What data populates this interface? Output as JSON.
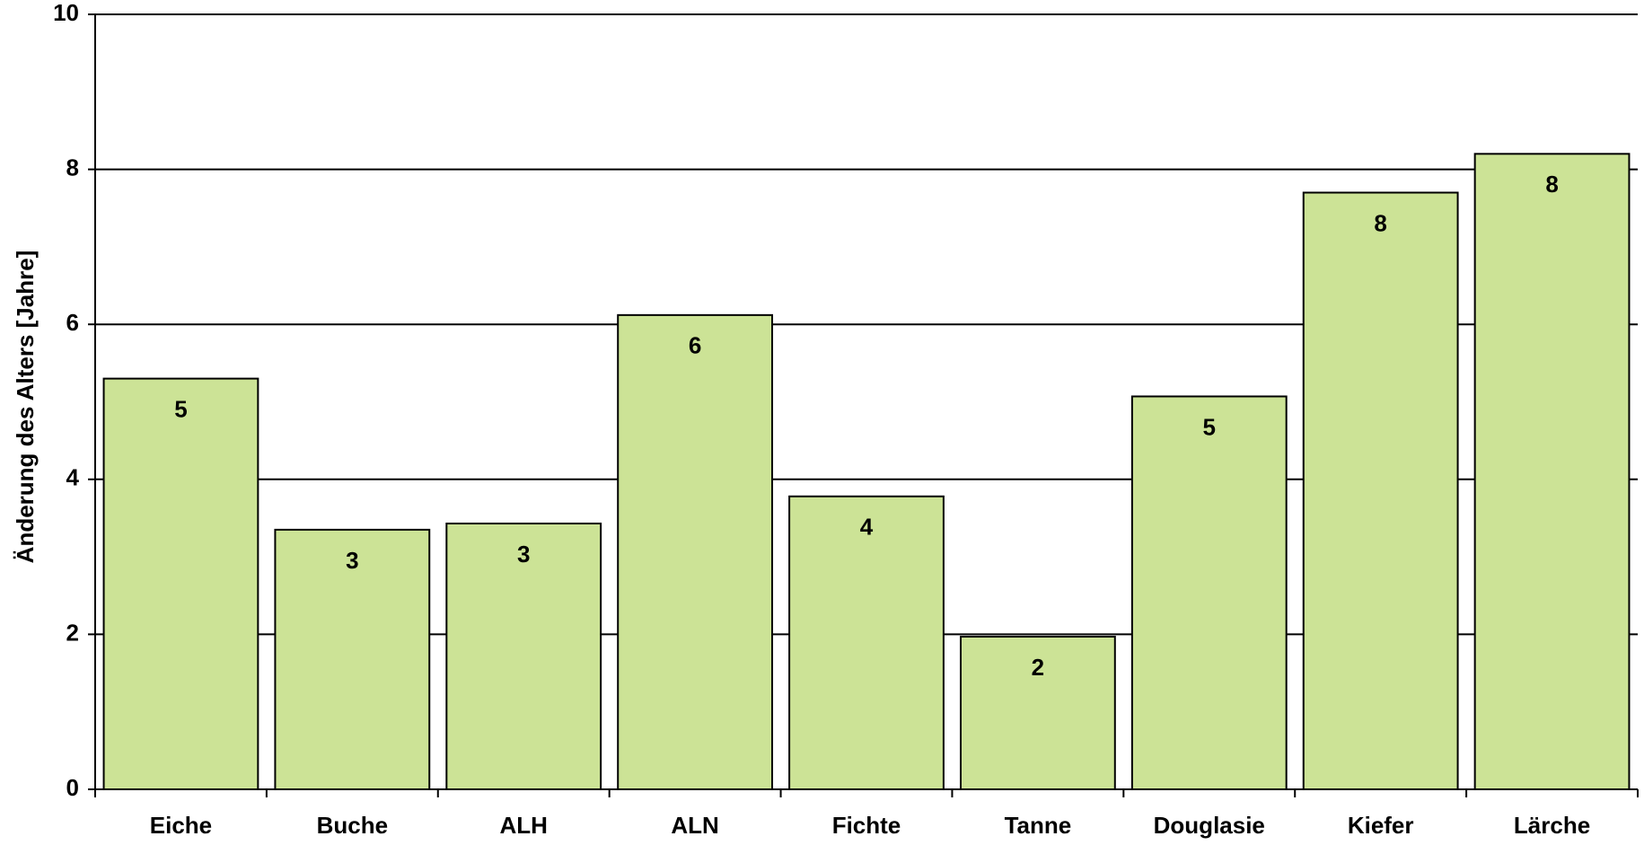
{
  "chart_data": {
    "type": "bar",
    "y_label": "Änderung des Alters [Jahre]",
    "categories": [
      "Eiche",
      "Buche",
      "ALH",
      "ALN",
      "Fichte",
      "Tanne",
      "Douglasie",
      "Kiefer",
      "Lärche"
    ],
    "values": [
      5.3,
      3.35,
      3.43,
      6.12,
      3.78,
      1.97,
      5.07,
      7.7,
      8.2
    ],
    "value_labels": [
      "5",
      "3",
      "3",
      "6",
      "4",
      "2",
      "5",
      "8",
      "8"
    ],
    "color": "#cce396",
    "ylim": [
      0,
      10
    ],
    "yticks": [
      0,
      2,
      4,
      6,
      8,
      10
    ],
    "grid": true
  }
}
